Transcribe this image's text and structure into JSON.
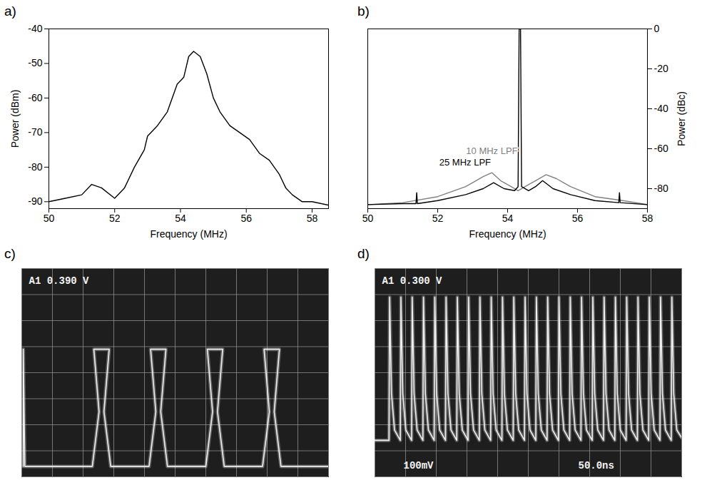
{
  "chart_data": [
    {
      "panel": "a)",
      "type": "line",
      "x_label": "Frequency (MHz)",
      "y_label": "Power (dBm)",
      "xlim": [
        50,
        58.5
      ],
      "ylim": [
        -92,
        -40
      ],
      "xticks": [
        50,
        52,
        54,
        56,
        58
      ],
      "yticks": [
        -90,
        -80,
        -70,
        -60,
        -50,
        -40
      ],
      "series": [
        {
          "color": "#000000",
          "x": [
            50,
            50.5,
            51,
            51.3,
            51.6,
            52,
            52.3,
            52.6,
            52.9,
            53.0,
            53.3,
            53.6,
            53.9,
            54.1,
            54.25,
            54.4,
            54.6,
            54.8,
            55.0,
            55.2,
            55.5,
            55.8,
            56.1,
            56.4,
            56.7,
            57.0,
            57.2,
            57.4,
            57.7,
            58,
            58.5
          ],
          "values": [
            -90,
            -89,
            -88,
            -85,
            -86,
            -89,
            -86,
            -80,
            -75,
            -71,
            -68,
            -64,
            -56,
            -54,
            -48,
            -46.5,
            -48,
            -53,
            -60,
            -64,
            -68,
            -70,
            -72,
            -76,
            -78,
            -82,
            -86,
            -88,
            -90,
            -90,
            -91
          ]
        }
      ]
    },
    {
      "panel": "b)",
      "type": "line",
      "x_label": "Frequency (MHz)",
      "y2_label": "Power (dBc)",
      "xlim": [
        50,
        58
      ],
      "y2lim": [
        -90,
        0
      ],
      "xticks": [
        50,
        52,
        54,
        56,
        58
      ],
      "y2ticks": [
        0,
        -20,
        -40,
        -60,
        -80
      ],
      "series": [
        {
          "name": "10 MHz LPF",
          "color": "#808080",
          "axis": "y2",
          "x": [
            50,
            51,
            52,
            52.8,
            53.3,
            53.55,
            53.8,
            54.1,
            54.3,
            54.5,
            54.8,
            55.1,
            55.4,
            55.8,
            56.5,
            57.3,
            58
          ],
          "values": [
            -88,
            -87,
            -84,
            -79,
            -74,
            -72,
            -76,
            -79,
            -81,
            -79,
            -76,
            -73,
            -75,
            -79,
            -84,
            -86,
            -88
          ]
        },
        {
          "name": "25 MHz LPF",
          "color": "#000000",
          "axis": "y2",
          "x": [
            50,
            51,
            51.38,
            51.4,
            51.42,
            52,
            52.8,
            53.3,
            53.6,
            53.9,
            54.2,
            54.3,
            54.33,
            54.37,
            54.4,
            54.6,
            54.8,
            55.0,
            55.3,
            55.8,
            56.5,
            57.18,
            57.2,
            57.22,
            58
          ],
          "values": [
            -88,
            -87.5,
            -87.5,
            -82,
            -87.5,
            -86,
            -83,
            -80,
            -77,
            -80,
            -81,
            -79,
            0,
            0,
            -79,
            -81,
            -79,
            -76,
            -80,
            -83,
            -86,
            -87,
            -82,
            -87,
            -88
          ]
        }
      ]
    },
    {
      "panel": "c)",
      "type": "oscilloscope",
      "grid": true,
      "tick_labels": false,
      "xlim": [
        0,
        10
      ],
      "ylim": [
        0,
        8
      ],
      "xticks": [
        0,
        1,
        2,
        3,
        4,
        5,
        6,
        7,
        8,
        9,
        10
      ],
      "yticks": [
        0,
        1,
        2,
        3,
        4,
        5,
        6,
        7,
        8
      ],
      "annotations": [
        "A1 0.390 V"
      ],
      "series": [
        {
          "color": "#f0f0f0",
          "x": [
            0.05,
            0.05,
            0.1,
            2.3,
            2.52,
            2.35,
            2.85,
            2.68,
            2.9,
            4.15,
            4.37,
            4.2,
            4.7,
            4.53,
            4.75,
            6.0,
            6.22,
            6.05,
            6.55,
            6.38,
            6.6,
            7.85,
            8.07,
            7.9,
            8.4,
            8.23,
            8.45,
            10
          ],
          "values": [
            0.4,
            4.9,
            0.4,
            0.4,
            2.5,
            4.9,
            4.9,
            2.5,
            0.4,
            0.4,
            2.5,
            4.9,
            4.9,
            2.5,
            0.4,
            0.4,
            2.5,
            4.9,
            4.9,
            2.5,
            0.4,
            0.4,
            2.5,
            4.9,
            4.9,
            2.5,
            0.4,
            0.4
          ]
        }
      ]
    },
    {
      "panel": "d)",
      "type": "oscilloscope",
      "grid": true,
      "tick_labels": false,
      "xlim": [
        0,
        500
      ],
      "ylim": [
        0,
        800
      ],
      "xticks": [
        0,
        50,
        100,
        150,
        200,
        250,
        300,
        350,
        400,
        450,
        500
      ],
      "yticks": [
        0,
        100,
        200,
        300,
        400,
        500,
        600,
        700,
        800
      ],
      "annotations": [
        "A1 0.300 V",
        "100mV",
        "50.0ns"
      ],
      "series": [
        {
          "color": "#f0f0f0",
          "x": [
            0,
            23,
            24,
            27,
            32,
            41.4,
            42.4,
            45.4,
            50.4,
            59.8,
            60.8,
            63.8,
            68.8,
            78.2,
            79.2,
            82.2,
            87.2,
            96.6,
            97.6,
            100.6,
            105.6,
            115,
            116,
            119,
            124,
            133.4,
            134.4,
            137.4,
            142.4,
            151.8,
            152.8,
            155.8,
            160.8,
            170.2,
            171.2,
            174.2,
            179.2,
            188.6,
            189.6,
            192.6,
            197.6,
            207,
            208,
            211,
            216,
            225.4,
            226.4,
            229.4,
            234.4,
            243.8,
            244.8,
            247.8,
            252.8,
            262.2,
            263.2,
            266.2,
            271.2,
            280.6,
            281.6,
            284.6,
            289.6,
            299,
            300,
            303,
            308,
            317.4,
            318.4,
            321.4,
            326.4,
            335.8,
            336.8,
            339.8,
            344.8,
            354.2,
            355.2,
            358.2,
            363.2,
            372.6,
            373.6,
            376.6,
            381.6,
            391,
            392,
            395,
            400,
            409.4,
            410.4,
            413.4,
            418.4,
            427.8,
            428.8,
            431.8,
            436.8,
            446.2,
            447.2,
            450.2,
            455.2,
            464.6,
            465.6,
            468.6,
            473.6,
            483,
            484,
            487,
            492,
            500
          ],
          "values": [
            140,
            140,
            690,
            320,
            180,
            140,
            690,
            320,
            180,
            140,
            690,
            320,
            180,
            140,
            690,
            320,
            180,
            140,
            690,
            320,
            180,
            140,
            690,
            320,
            180,
            140,
            690,
            320,
            180,
            140,
            690,
            320,
            180,
            140,
            690,
            320,
            180,
            140,
            690,
            320,
            180,
            140,
            690,
            320,
            180,
            140,
            690,
            320,
            180,
            140,
            690,
            320,
            180,
            140,
            690,
            320,
            180,
            140,
            690,
            320,
            180,
            140,
            690,
            320,
            180,
            140,
            690,
            320,
            180,
            140,
            690,
            320,
            180,
            140,
            690,
            320,
            180,
            140,
            690,
            320,
            180,
            140,
            690,
            320,
            180,
            140,
            690,
            320,
            180,
            140,
            690,
            320,
            180,
            140,
            690,
            320,
            180,
            140,
            690,
            320,
            180,
            140,
            690,
            320,
            180,
            150
          ]
        }
      ]
    }
  ]
}
